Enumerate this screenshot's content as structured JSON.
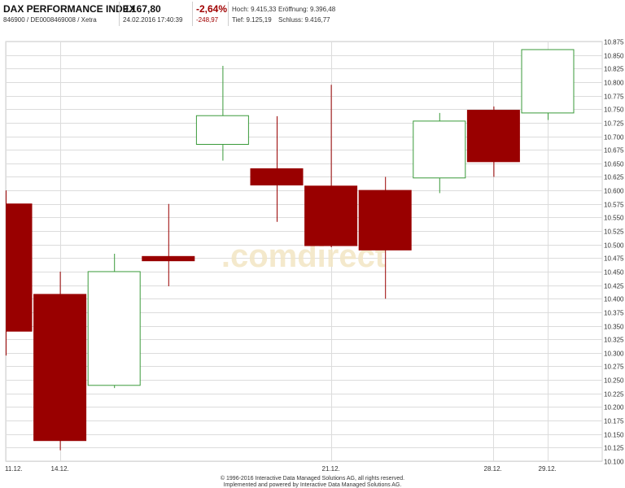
{
  "header": {
    "index_name": "DAX PERFORMANCE INDEX",
    "isin": "846900 / DE0008469008 / Xetra",
    "price": "9.167,80",
    "datetime": "24.02.2016 17:40:39",
    "change_pct": "-2,64%",
    "change_abs": "-248,97",
    "high_label": "Hoch:",
    "high_value": "9.415,33",
    "open_label": "Eröffnung:",
    "open_value": "9.396,48",
    "low_label": "Tief:",
    "low_value": "9.125,19",
    "close_label": "Schluss:",
    "close_value": "9.416,77"
  },
  "watermark": ".comdirect",
  "footer": {
    "line1": "© 1996-2016 Interactive Data Managed Solutions AG, all rights reserved.",
    "line2": "Implemented and powered by Interactive Data Managed Solutions AG."
  },
  "colors": {
    "down_fill": "#990000",
    "up_stroke": "#3a9a3a",
    "grid": "#dcdcdc",
    "watermark": "#f3e6c4"
  },
  "chart_data": {
    "type": "candlestick",
    "ylim": [
      10100,
      10875
    ],
    "y_tick_step": 25,
    "grid": true,
    "x_tick_labels": [
      {
        "label": "11.12.",
        "index": 0
      },
      {
        "label": "14.12.",
        "index": 1
      },
      {
        "label": "21.12.",
        "index": 6
      },
      {
        "label": "28.12.",
        "index": 9
      },
      {
        "label": "29.12.",
        "index": 10
      }
    ],
    "candles": [
      {
        "open": 10575,
        "high": 10600,
        "low": 10295,
        "close": 10340
      },
      {
        "open": 10408,
        "high": 10450,
        "low": 10120,
        "close": 10138
      },
      {
        "open": 10240,
        "high": 10483,
        "low": 10235,
        "close": 10450
      },
      {
        "open": 10478,
        "high": 10575,
        "low": 10423,
        "close": 10470
      },
      {
        "open": 10685,
        "high": 10830,
        "low": 10655,
        "close": 10738
      },
      {
        "open": 10640,
        "high": 10737,
        "low": 10542,
        "close": 10610
      },
      {
        "open": 10608,
        "high": 10795,
        "low": 10495,
        "close": 10498
      },
      {
        "open": 10600,
        "high": 10625,
        "low": 10400,
        "close": 10490
      },
      {
        "open": 10623,
        "high": 10743,
        "low": 10595,
        "close": 10728
      },
      {
        "open": 10748,
        "high": 10755,
        "low": 10625,
        "close": 10653
      },
      {
        "open": 10743,
        "high": 10860,
        "low": 10730,
        "close": 10860
      }
    ]
  }
}
